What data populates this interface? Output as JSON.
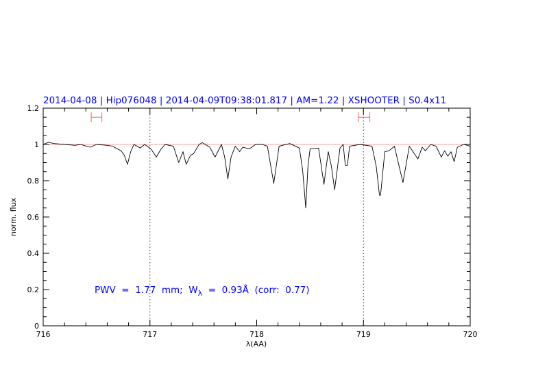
{
  "chart_data": {
    "type": "line",
    "title": "2014-04-08 | Hip076048 | 2014-04-09T09:38:01.817 | AM=1.22 | XSHOOTER | S0.4x11",
    "xlabel": "λ(AA)",
    "ylabel": "norm. flux",
    "xlim": [
      716,
      720
    ],
    "ylim": [
      0,
      1.2
    ],
    "xticks": [
      "716",
      "717",
      "718",
      "719",
      "720"
    ],
    "yticks": [
      "0",
      "0.2",
      "0.4",
      "0.6",
      "0.8",
      "1",
      "1.2"
    ],
    "grid": false,
    "reference_line": 1.0,
    "vertical_dotted_lines": [
      717,
      719
    ],
    "intervals": [
      {
        "from": 716.45,
        "to": 716.55,
        "y": 1.15
      },
      {
        "from": 718.95,
        "to": 719.06,
        "y": 1.15
      }
    ],
    "annotation": {
      "prefix": "PWV  =  1.77  mm;  W",
      "subscript": "λ",
      "suffix": "  =  0.93Å  (corr:  0.77)"
    },
    "colors": {
      "spectrum": "#000000",
      "reference": "#f08080",
      "intervals": "#ff6060",
      "text": "#0000ff"
    },
    "series": [
      {
        "x": [
          716.0,
          716.05,
          716.1,
          716.2,
          716.3,
          716.35,
          716.44,
          716.5,
          716.6,
          716.65,
          716.73,
          716.76,
          716.79,
          716.82,
          716.85,
          716.91,
          716.95,
          717.01,
          717.06,
          717.1,
          717.14,
          717.22,
          717.27,
          717.31,
          717.34,
          717.38,
          717.41,
          717.46,
          717.49,
          717.56,
          717.61,
          717.67,
          717.7,
          717.73,
          717.76,
          717.8,
          717.84,
          717.87,
          717.93,
          717.99,
          718.05,
          718.1,
          718.16,
          718.21,
          718.31,
          718.4,
          718.43,
          718.46,
          718.48,
          718.5,
          718.58,
          718.63,
          718.67,
          718.7,
          718.73,
          718.78,
          718.81,
          718.83,
          718.85,
          718.87,
          718.97,
          719.08,
          719.12,
          719.15,
          719.16,
          719.2,
          719.24,
          719.29,
          719.37,
          719.43,
          719.51,
          719.55,
          719.58,
          719.63,
          719.68,
          719.73,
          719.76,
          719.79,
          719.82,
          719.85,
          719.88,
          719.94,
          720.0
        ],
        "y": [
          1.0,
          1.012,
          1.005,
          1.0,
          0.995,
          1.0,
          0.985,
          1.0,
          0.995,
          0.99,
          0.965,
          0.94,
          0.89,
          0.96,
          1.0,
          0.98,
          1.0,
          0.975,
          0.93,
          0.97,
          1.0,
          0.99,
          0.9,
          0.96,
          0.89,
          0.94,
          0.95,
          1.0,
          1.01,
          0.985,
          0.93,
          1.0,
          0.93,
          0.81,
          0.93,
          0.99,
          0.96,
          0.985,
          0.975,
          1.0,
          1.0,
          0.99,
          0.785,
          0.99,
          1.005,
          0.98,
          0.86,
          0.65,
          0.88,
          0.975,
          0.98,
          0.78,
          0.96,
          0.88,
          0.75,
          0.98,
          1.0,
          0.885,
          0.885,
          0.99,
          1.0,
          0.99,
          0.88,
          0.72,
          0.72,
          0.96,
          0.965,
          0.99,
          0.79,
          0.99,
          0.92,
          0.985,
          0.965,
          1.0,
          0.99,
          0.93,
          0.965,
          0.935,
          0.96,
          0.905,
          0.985,
          1.0,
          0.99
        ]
      }
    ]
  }
}
